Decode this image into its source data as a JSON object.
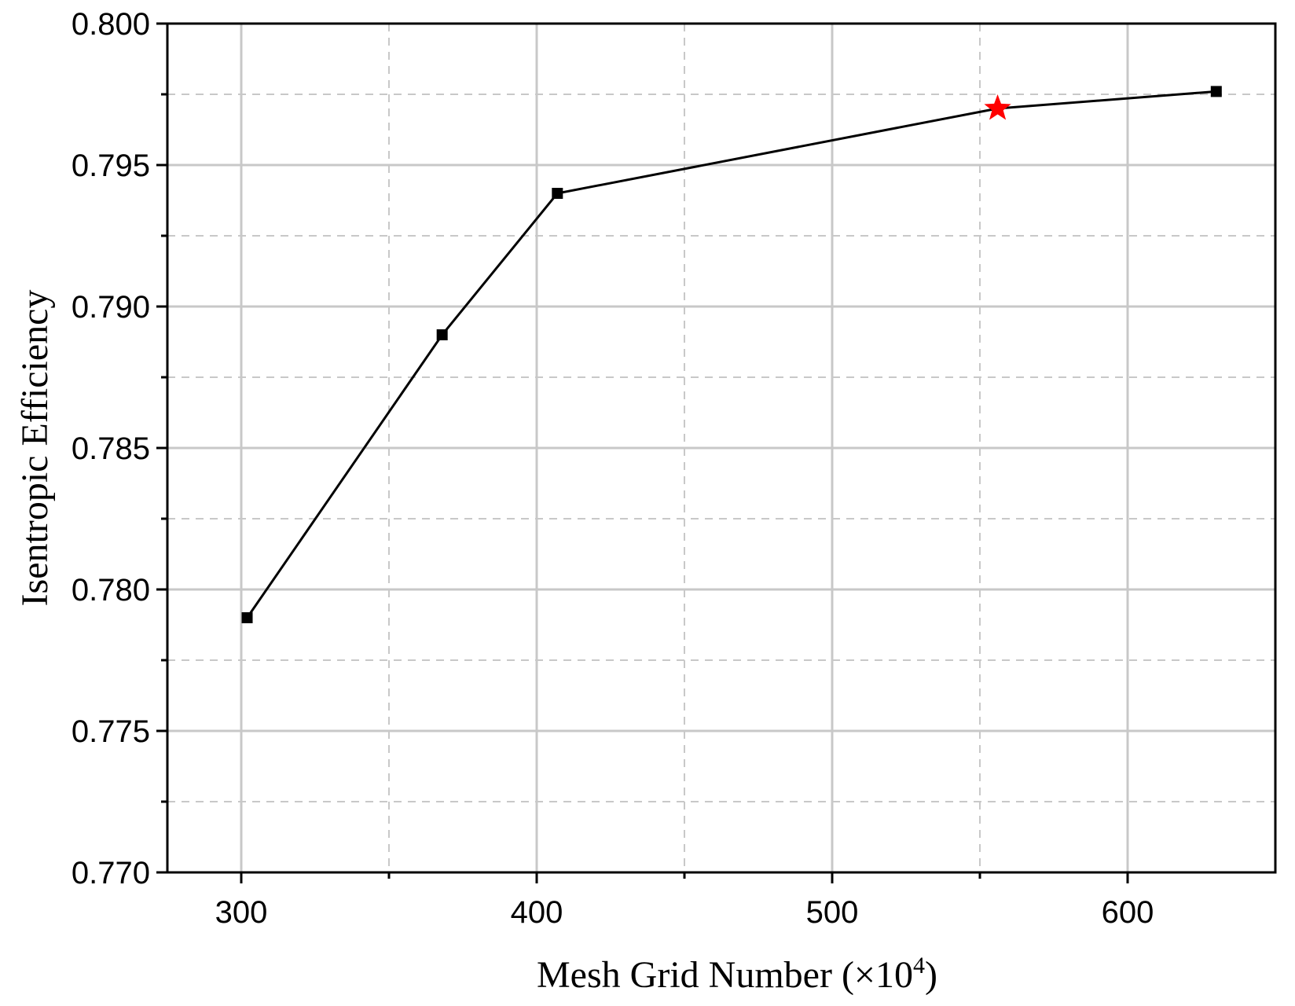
{
  "chart_data": {
    "type": "line",
    "xlabel": "Mesh Grid Number (×10",
    "xlabel_superscript": "4",
    "xlabel_suffix": ")",
    "ylabel": "Isentropic Efficiency",
    "xlim": [
      275,
      650
    ],
    "ylim": [
      0.77,
      0.8
    ],
    "x_ticks": [
      300,
      400,
      500,
      600
    ],
    "x_tick_labels": [
      "300",
      "400",
      "500",
      "600"
    ],
    "x_minor_ticks": [
      350,
      450,
      550
    ],
    "y_ticks": [
      0.77,
      0.775,
      0.78,
      0.785,
      0.79,
      0.795,
      0.8
    ],
    "y_tick_labels": [
      "0.770",
      "0.775",
      "0.780",
      "0.785",
      "0.790",
      "0.795",
      "0.800"
    ],
    "y_minor_ticks": [
      0.7725,
      0.7775,
      0.7825,
      0.7875,
      0.7925,
      0.7975
    ],
    "grid": true,
    "series": [
      {
        "x": [
          302,
          368,
          407,
          556,
          630
        ],
        "y": [
          0.779,
          0.789,
          0.794,
          0.797,
          0.7976
        ],
        "markers": [
          "square",
          "square",
          "square",
          "star",
          "square"
        ]
      }
    ],
    "colors": {
      "line": "#000000",
      "marker": "#000000",
      "highlight": "#ff0000",
      "major_grid": "#c8c8c8",
      "minor_grid": "#c8c8c8"
    }
  }
}
